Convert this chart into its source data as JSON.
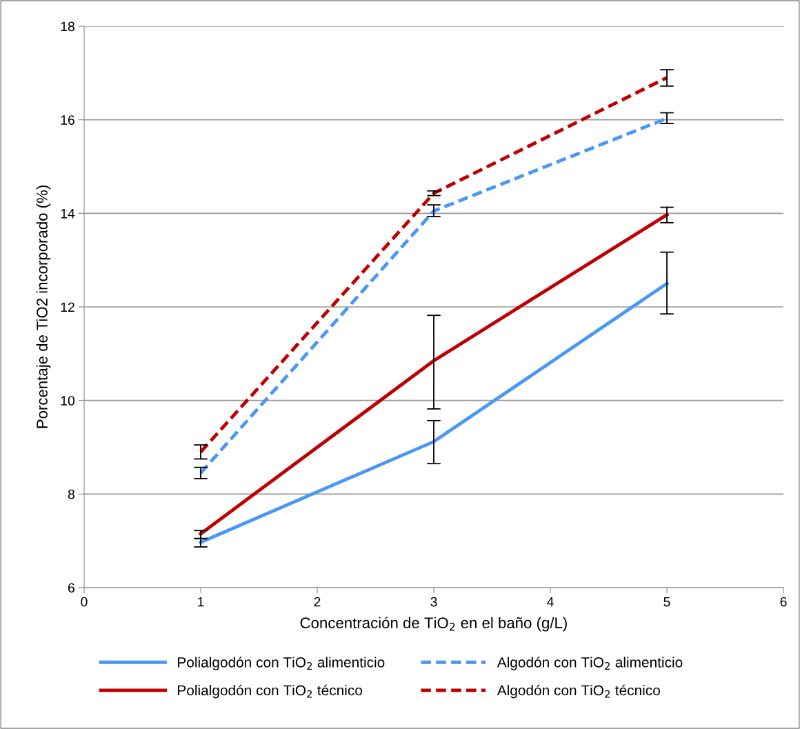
{
  "chart_data": {
    "type": "line",
    "xlabel": "Concentración de TiO$_{2}$ en el baño (g/L)",
    "ylabel": "Porcentaje de TiO2 incorporado (%)",
    "x": [
      1,
      3,
      5
    ],
    "xlim": [
      0,
      6
    ],
    "xticks": [
      0,
      1,
      2,
      3,
      4,
      5,
      6
    ],
    "ylim": [
      6,
      18
    ],
    "yticks": [
      6,
      8,
      10,
      12,
      14,
      16,
      18
    ],
    "grid": "y",
    "legend": "bottom",
    "marker": "none",
    "series": [
      {
        "name": "Polialgodón con TiO$_{2}$ alimenticio",
        "color": "#4a97f5",
        "line_style": "solid",
        "values": [
          6.97,
          9.12,
          12.5
        ],
        "errors": [
          [
            6.87,
            7.05
          ],
          [
            8.65,
            9.57
          ],
          [
            11.85,
            13.17
          ]
        ]
      },
      {
        "name": "Polialgodón con TiO$_{2}$ técnico",
        "color": "#c00000",
        "line_style": "solid",
        "values": [
          7.15,
          10.85,
          13.97
        ],
        "errors": [
          [
            7.05,
            7.22
          ],
          [
            9.82,
            11.82
          ],
          [
            13.8,
            14.13
          ]
        ]
      },
      {
        "name": "Algodón con TiO$_{2}$ alimenticio",
        "color": "#4a97f5",
        "line_style": "dashed",
        "values": [
          8.45,
          14.05,
          16.03
        ],
        "errors": [
          [
            8.33,
            8.57
          ],
          [
            13.93,
            14.18
          ],
          [
            15.92,
            16.15
          ]
        ]
      },
      {
        "name": "Algodón con TiO$_{2}$ técnico",
        "color": "#c00000",
        "line_style": "dashed",
        "values": [
          8.9,
          14.43,
          16.9
        ],
        "errors": [
          [
            8.75,
            9.05
          ],
          [
            14.38,
            14.48
          ],
          [
            16.72,
            17.07
          ]
        ]
      }
    ]
  }
}
